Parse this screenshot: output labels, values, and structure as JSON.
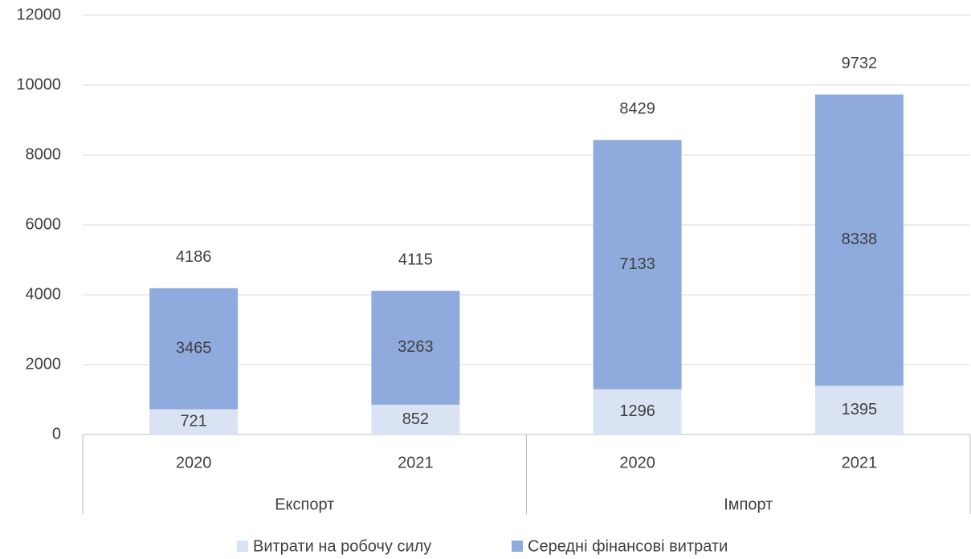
{
  "chart_data": {
    "type": "stacked_bar",
    "categories": [
      "2020",
      "2021",
      "2020",
      "2021"
    ],
    "groups": [
      "Експорт",
      "Імпорт"
    ],
    "series": [
      {
        "name": "Витрати на робочу силу",
        "color": "#dae3f3",
        "values": [
          721,
          852,
          1296,
          1395
        ]
      },
      {
        "name": "Середні фінансові витрати",
        "color": "#8faadc",
        "values": [
          3465,
          3263,
          7133,
          8338
        ]
      }
    ],
    "totals": [
      4186,
      4115,
      8429,
      9732
    ],
    "ylim": [
      0,
      12000
    ],
    "yticks": [
      0,
      2000,
      4000,
      6000,
      8000,
      10000,
      12000
    ],
    "grid": true,
    "legend": "bottom"
  }
}
